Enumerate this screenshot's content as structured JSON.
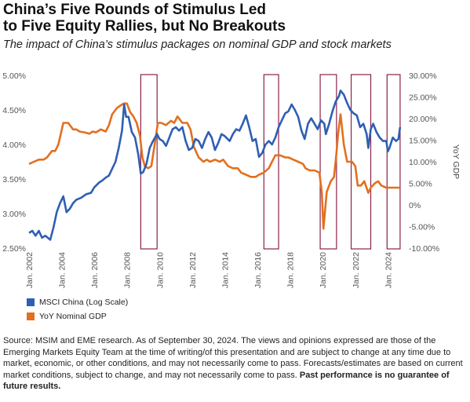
{
  "title_line1": "China’s Five Rounds of Stimulus Led",
  "title_line2": "to Five Equity Rallies, but No Breakouts",
  "subtitle": "The impact of China’s stimulus packages on nominal GDP and stock markets",
  "footnote": {
    "text": "Source: MSIM and EME research. As of September 30, 2024. The views and opinions expressed are those of the Emerging Markets Equity Team  at the time of writing/of this presentation and are subject to change at any time due to market, economic, or other conditions, and may not necessarily come to pass. Forecasts/estimates are based on current market conditions, subject to change, and may not necessarily come to pass.",
    "bold": "Past performance is no guarantee of future results."
  },
  "chart_data": {
    "type": "line",
    "x_tick_labels": [
      "Jan. 2002",
      "Jan. 2004",
      "Jan. 2006",
      "Jan. 2008",
      "Jan. 2010",
      "Jan. 2012",
      "Jan. 2014",
      "Jan. 2016",
      "Jan. 2018",
      "Jan. 2020",
      "Jan. 2022",
      "Jan. 2024"
    ],
    "x_range": [
      2002.0,
      2024.85
    ],
    "y_left": {
      "label": "",
      "ticks": [
        "2.50%",
        "3.00%",
        "3.50%",
        "4.00%",
        "4.50%",
        "5.00%"
      ],
      "range": [
        2.5,
        5.0
      ]
    },
    "y_right": {
      "label": "YoY GDP",
      "ticks": [
        "-10.00%",
        "-5.00%",
        "0%",
        "5.00%",
        "10.00%",
        "15.00%",
        "20.00%",
        "25.00%",
        "30.00%"
      ],
      "range": [
        -10,
        30
      ]
    },
    "stimulus_windows": [
      [
        2008.85,
        2009.85
      ],
      [
        2016.4,
        2017.3
      ],
      [
        2019.85,
        2020.85
      ],
      [
        2021.75,
        2022.95
      ],
      [
        2023.95,
        2024.75
      ]
    ],
    "colors": {
      "msci": "#2f5fb3",
      "gdp": "#e2701f",
      "window": "#8a2248",
      "axis_text": "#555555"
    },
    "legend_position": "bottom-left",
    "series": [
      {
        "name": "MSCI China (Log Scale)",
        "axis": "left",
        "points": [
          [
            2002.0,
            2.72
          ],
          [
            2002.2,
            2.75
          ],
          [
            2002.4,
            2.68
          ],
          [
            2002.6,
            2.75
          ],
          [
            2002.8,
            2.65
          ],
          [
            2003.0,
            2.68
          ],
          [
            2003.3,
            2.62
          ],
          [
            2003.5,
            2.8
          ],
          [
            2003.7,
            3.02
          ],
          [
            2003.9,
            3.15
          ],
          [
            2004.1,
            3.25
          ],
          [
            2004.3,
            3.02
          ],
          [
            2004.5,
            3.07
          ],
          [
            2004.7,
            3.15
          ],
          [
            2004.9,
            3.2
          ],
          [
            2005.2,
            3.23
          ],
          [
            2005.5,
            3.28
          ],
          [
            2005.8,
            3.3
          ],
          [
            2006.0,
            3.38
          ],
          [
            2006.3,
            3.45
          ],
          [
            2006.5,
            3.48
          ],
          [
            2006.7,
            3.52
          ],
          [
            2006.9,
            3.55
          ],
          [
            2007.1,
            3.65
          ],
          [
            2007.3,
            3.75
          ],
          [
            2007.5,
            3.95
          ],
          [
            2007.7,
            4.2
          ],
          [
            2007.83,
            4.58
          ],
          [
            2007.95,
            4.4
          ],
          [
            2008.1,
            4.4
          ],
          [
            2008.3,
            4.18
          ],
          [
            2008.5,
            4.1
          ],
          [
            2008.7,
            3.85
          ],
          [
            2008.85,
            3.58
          ],
          [
            2009.0,
            3.6
          ],
          [
            2009.2,
            3.72
          ],
          [
            2009.4,
            3.95
          ],
          [
            2009.6,
            4.05
          ],
          [
            2009.85,
            4.15
          ],
          [
            2010.0,
            4.08
          ],
          [
            2010.2,
            4.05
          ],
          [
            2010.4,
            3.98
          ],
          [
            2010.6,
            4.1
          ],
          [
            2010.8,
            4.22
          ],
          [
            2011.0,
            4.25
          ],
          [
            2011.2,
            4.2
          ],
          [
            2011.4,
            4.25
          ],
          [
            2011.6,
            4.05
          ],
          [
            2011.8,
            3.92
          ],
          [
            2012.0,
            3.95
          ],
          [
            2012.2,
            4.08
          ],
          [
            2012.4,
            4.05
          ],
          [
            2012.6,
            3.95
          ],
          [
            2012.8,
            4.08
          ],
          [
            2013.0,
            4.18
          ],
          [
            2013.2,
            4.1
          ],
          [
            2013.4,
            3.92
          ],
          [
            2013.6,
            4.02
          ],
          [
            2013.8,
            4.15
          ],
          [
            2014.0,
            4.12
          ],
          [
            2014.3,
            4.05
          ],
          [
            2014.5,
            4.15
          ],
          [
            2014.7,
            4.22
          ],
          [
            2014.9,
            4.2
          ],
          [
            2015.1,
            4.3
          ],
          [
            2015.3,
            4.42
          ],
          [
            2015.5,
            4.25
          ],
          [
            2015.7,
            4.05
          ],
          [
            2015.9,
            4.08
          ],
          [
            2016.1,
            3.82
          ],
          [
            2016.3,
            3.88
          ],
          [
            2016.5,
            4.0
          ],
          [
            2016.7,
            4.05
          ],
          [
            2016.9,
            4.0
          ],
          [
            2017.1,
            4.1
          ],
          [
            2017.3,
            4.25
          ],
          [
            2017.5,
            4.35
          ],
          [
            2017.7,
            4.45
          ],
          [
            2017.9,
            4.48
          ],
          [
            2018.1,
            4.58
          ],
          [
            2018.3,
            4.5
          ],
          [
            2018.5,
            4.4
          ],
          [
            2018.7,
            4.2
          ],
          [
            2018.9,
            4.08
          ],
          [
            2019.1,
            4.3
          ],
          [
            2019.3,
            4.38
          ],
          [
            2019.5,
            4.3
          ],
          [
            2019.7,
            4.22
          ],
          [
            2019.9,
            4.35
          ],
          [
            2020.1,
            4.3
          ],
          [
            2020.2,
            4.15
          ],
          [
            2020.4,
            4.3
          ],
          [
            2020.6,
            4.48
          ],
          [
            2020.8,
            4.62
          ],
          [
            2021.0,
            4.7
          ],
          [
            2021.1,
            4.78
          ],
          [
            2021.3,
            4.72
          ],
          [
            2021.5,
            4.6
          ],
          [
            2021.7,
            4.5
          ],
          [
            2021.9,
            4.45
          ],
          [
            2022.1,
            4.42
          ],
          [
            2022.3,
            4.25
          ],
          [
            2022.5,
            4.3
          ],
          [
            2022.7,
            4.15
          ],
          [
            2022.8,
            3.95
          ],
          [
            2022.95,
            4.22
          ],
          [
            2023.1,
            4.3
          ],
          [
            2023.3,
            4.18
          ],
          [
            2023.5,
            4.1
          ],
          [
            2023.7,
            4.05
          ],
          [
            2023.9,
            4.05
          ],
          [
            2024.0,
            3.9
          ],
          [
            2024.1,
            3.95
          ],
          [
            2024.3,
            4.1
          ],
          [
            2024.5,
            4.05
          ],
          [
            2024.65,
            4.08
          ],
          [
            2024.75,
            4.25
          ]
        ]
      },
      {
        "name": "YoY Nominal GDP",
        "axis": "right",
        "points": [
          [
            2002.0,
            9.5
          ],
          [
            2002.3,
            10.0
          ],
          [
            2002.6,
            10.5
          ],
          [
            2002.9,
            10.5
          ],
          [
            2003.1,
            11.0
          ],
          [
            2003.4,
            12.5
          ],
          [
            2003.6,
            12.5
          ],
          [
            2003.8,
            14.0
          ],
          [
            2004.1,
            19.0
          ],
          [
            2004.4,
            19.0
          ],
          [
            2004.7,
            17.5
          ],
          [
            2004.9,
            17.5
          ],
          [
            2005.1,
            17.0
          ],
          [
            2005.4,
            16.8
          ],
          [
            2005.7,
            16.5
          ],
          [
            2005.9,
            17.0
          ],
          [
            2006.1,
            16.8
          ],
          [
            2006.4,
            17.5
          ],
          [
            2006.7,
            17.0
          ],
          [
            2006.9,
            18.5
          ],
          [
            2007.1,
            21.0
          ],
          [
            2007.4,
            22.5
          ],
          [
            2007.6,
            23.0
          ],
          [
            2007.8,
            23.5
          ],
          [
            2008.0,
            23.5
          ],
          [
            2008.2,
            21.5
          ],
          [
            2008.4,
            20.5
          ],
          [
            2008.6,
            19.0
          ],
          [
            2008.8,
            16.0
          ],
          [
            2008.95,
            11.0
          ],
          [
            2009.1,
            9.0
          ],
          [
            2009.3,
            8.5
          ],
          [
            2009.5,
            9.0
          ],
          [
            2009.7,
            14.0
          ],
          [
            2009.9,
            19.0
          ],
          [
            2010.1,
            19.0
          ],
          [
            2010.4,
            18.5
          ],
          [
            2010.7,
            19.5
          ],
          [
            2010.9,
            19.0
          ],
          [
            2011.1,
            20.5
          ],
          [
            2011.4,
            19.0
          ],
          [
            2011.7,
            19.0
          ],
          [
            2011.9,
            17.5
          ],
          [
            2012.1,
            13.5
          ],
          [
            2012.4,
            11.0
          ],
          [
            2012.7,
            10.0
          ],
          [
            2012.9,
            10.5
          ],
          [
            2013.1,
            10.0
          ],
          [
            2013.4,
            10.5
          ],
          [
            2013.7,
            10.0
          ],
          [
            2013.9,
            10.5
          ],
          [
            2014.2,
            9.0
          ],
          [
            2014.5,
            8.5
          ],
          [
            2014.8,
            8.5
          ],
          [
            2015.0,
            7.5
          ],
          [
            2015.3,
            7.0
          ],
          [
            2015.6,
            6.5
          ],
          [
            2015.9,
            6.5
          ],
          [
            2016.1,
            7.0
          ],
          [
            2016.4,
            7.5
          ],
          [
            2016.7,
            8.5
          ],
          [
            2016.9,
            10.0
          ],
          [
            2017.1,
            11.5
          ],
          [
            2017.4,
            11.5
          ],
          [
            2017.7,
            11.0
          ],
          [
            2017.9,
            11.0
          ],
          [
            2018.2,
            10.5
          ],
          [
            2018.5,
            10.0
          ],
          [
            2018.8,
            9.5
          ],
          [
            2018.95,
            8.5
          ],
          [
            2019.2,
            8.0
          ],
          [
            2019.5,
            8.0
          ],
          [
            2019.8,
            7.5
          ],
          [
            2019.95,
            3.0
          ],
          [
            2020.05,
            -5.5
          ],
          [
            2020.25,
            3.0
          ],
          [
            2020.5,
            5.5
          ],
          [
            2020.7,
            6.5
          ],
          [
            2020.85,
            12.0
          ],
          [
            2020.95,
            16.5
          ],
          [
            2021.1,
            21.0
          ],
          [
            2021.3,
            14.0
          ],
          [
            2021.5,
            10.0
          ],
          [
            2021.8,
            10.0
          ],
          [
            2022.0,
            9.0
          ],
          [
            2022.15,
            4.5
          ],
          [
            2022.35,
            4.5
          ],
          [
            2022.55,
            5.5
          ],
          [
            2022.8,
            2.8
          ],
          [
            2022.95,
            4.0
          ],
          [
            2023.2,
            5.0
          ],
          [
            2023.4,
            5.5
          ],
          [
            2023.6,
            4.5
          ],
          [
            2023.9,
            4.0
          ],
          [
            2024.2,
            4.0
          ],
          [
            2024.5,
            4.0
          ],
          [
            2024.75,
            4.0
          ]
        ]
      }
    ]
  }
}
